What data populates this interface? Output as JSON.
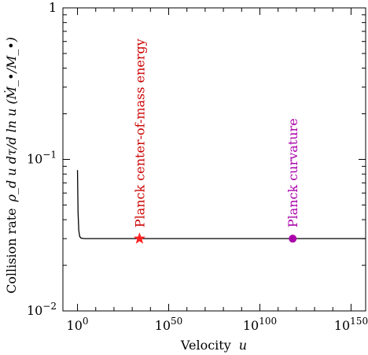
{
  "chart_data": {
    "type": "line",
    "xscale": "log",
    "yscale": "log",
    "xlabel_main": "Velocity",
    "xlabel_var": "u",
    "ylabel_main": "Collision rate",
    "ylabel_formula": "ρ_d u dτ/d ln u  (Ṁ_•/M_•)",
    "xlim_exp": [
      -8,
      158
    ],
    "ylim": [
      0.01,
      1
    ],
    "x_ticks": [
      {
        "exp": 0,
        "label": "10",
        "sup": "0"
      },
      {
        "exp": 50,
        "label": "10",
        "sup": "50"
      },
      {
        "exp": 100,
        "label": "10",
        "sup": "100"
      },
      {
        "exp": 150,
        "label": "10",
        "sup": "150"
      }
    ],
    "y_ticks": [
      {
        "value": 0.01,
        "label": "10",
        "sup": "−2"
      },
      {
        "value": 0.1,
        "label": "10",
        "sup": "−1"
      },
      {
        "value": 1,
        "label": "1",
        "sup": ""
      }
    ],
    "series": [
      {
        "color": "#000000",
        "points": [
          {
            "log10_x": 0,
            "y": 0.085
          },
          {
            "log10_x": 0.3,
            "y": 0.045
          },
          {
            "log10_x": 0.7,
            "y": 0.034
          },
          {
            "log10_x": 1.2,
            "y": 0.031
          },
          {
            "log10_x": 2.0,
            "y": 0.0302
          },
          {
            "log10_x": 4.0,
            "y": 0.03
          },
          {
            "log10_x": 158,
            "y": 0.03
          }
        ]
      }
    ],
    "annotations": [
      {
        "text": "Planck center-of-mass energy",
        "log10_x": 34,
        "y": 0.03,
        "marker": "star",
        "color": "#cc0000"
      },
      {
        "text": "Planck curvature",
        "log10_x": 118,
        "y": 0.03,
        "marker": "circle",
        "color": "#aa00aa"
      }
    ]
  }
}
